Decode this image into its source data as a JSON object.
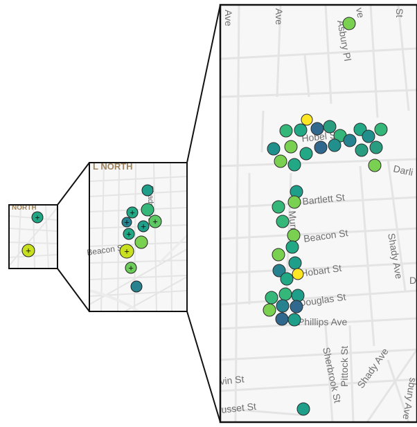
{
  "panels": {
    "small": {
      "neighborhood_label": "NORTH",
      "markers": [
        {
          "color": "#21a585",
          "cluster": true
        },
        {
          "color": "#c8e020",
          "cluster": true
        }
      ]
    },
    "medium": {
      "neighborhood_label": "L NORTH",
      "street_labels": [
        "Shady Ave",
        "Beacon St"
      ],
      "markers": [
        {
          "color": "#1f9e89",
          "cluster": false
        },
        {
          "color": "#22a884",
          "cluster": true
        },
        {
          "color": "#35b779",
          "cluster": false
        },
        {
          "color": "#26828e",
          "cluster": true
        },
        {
          "color": "#1f9e89",
          "cluster": true
        },
        {
          "color": "#5ec962",
          "cluster": true
        },
        {
          "color": "#22a884",
          "cluster": true
        },
        {
          "color": "#7ad151",
          "cluster": false
        },
        {
          "color": "#c8e020",
          "cluster": true
        },
        {
          "color": "#6ccd5a",
          "cluster": true
        },
        {
          "color": "#26828e",
          "cluster": false
        }
      ]
    },
    "large": {
      "street_labels": {
        "ave_top_left": "Ave",
        "ave_top_mid": "Ave",
        "ave_top_right": "ve",
        "st_top_right": "St",
        "asbury": "Asbury Pl",
        "hobel": "Hobel St",
        "darlington": "Darli",
        "bartlett": "Bartlett St",
        "murray": "Murray",
        "beacon": "Beacon St",
        "shady_right": "Shady Ave",
        "hobart": "Hobart St",
        "douglas": "Douglas St",
        "phillips": "Phillips Ave",
        "d_edge": "D",
        "pittock": "Pittock St",
        "sherbrook": "Sherbrook St",
        "shady_bottom": "Shady Ave",
        "asbury_bottom": "sbury Ave",
        "vin": "vin St",
        "russet": "usset St"
      },
      "markers": [
        {
          "color": "#7ad151"
        },
        {
          "color": "#fde725"
        },
        {
          "color": "#35b779"
        },
        {
          "color": "#22a884"
        },
        {
          "color": "#31688e"
        },
        {
          "color": "#2a9d80"
        },
        {
          "color": "#7ad151"
        },
        {
          "color": "#21908d"
        },
        {
          "color": "#22a884"
        },
        {
          "color": "#31688e"
        },
        {
          "color": "#35b779"
        },
        {
          "color": "#21908d"
        },
        {
          "color": "#26828e"
        },
        {
          "color": "#22a884"
        },
        {
          "color": "#35b779"
        },
        {
          "color": "#2a9d80"
        },
        {
          "color": "#21908d"
        },
        {
          "color": "#2a9d80"
        },
        {
          "color": "#22a884"
        },
        {
          "color": "#7ad151"
        },
        {
          "color": "#7ad151"
        },
        {
          "color": "#1f9e89"
        },
        {
          "color": "#7ad151"
        },
        {
          "color": "#35b779"
        },
        {
          "color": "#35b779"
        },
        {
          "color": "#7ad151"
        },
        {
          "color": "#22a884"
        },
        {
          "color": "#7ad151"
        },
        {
          "color": "#1f9e89"
        },
        {
          "color": "#26828e"
        },
        {
          "color": "#fde725"
        },
        {
          "color": "#22a884"
        },
        {
          "color": "#35b779"
        },
        {
          "color": "#1f9e89"
        },
        {
          "color": "#35b779"
        },
        {
          "color": "#26828e"
        },
        {
          "color": "#31688e"
        },
        {
          "color": "#7ad151"
        },
        {
          "color": "#31688e"
        },
        {
          "color": "#1f9e89"
        },
        {
          "color": "#1f9e89"
        }
      ]
    }
  }
}
